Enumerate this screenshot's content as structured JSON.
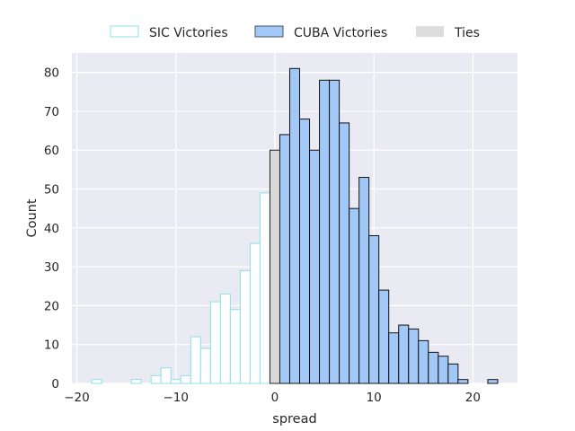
{
  "chart_data": {
    "type": "bar",
    "title": "",
    "xlabel": "spread",
    "ylabel": "Count",
    "xlim": [
      -20.5,
      24.5
    ],
    "ylim": [
      0,
      85
    ],
    "xticks": [
      -20,
      -10,
      0,
      10,
      20
    ],
    "yticks": [
      0,
      10,
      20,
      30,
      40,
      50,
      60,
      70,
      80
    ],
    "grid": true,
    "legend_position": "top-center",
    "bin_width": 1,
    "series": [
      {
        "name": "SIC Victories",
        "style": "outline",
        "edge_color": "#8fdfe8",
        "fill_color": "#ffffff",
        "bins": [
          {
            "x": -18,
            "count": 1
          },
          {
            "x": -14,
            "count": 1
          },
          {
            "x": -12,
            "count": 2
          },
          {
            "x": -11,
            "count": 4
          },
          {
            "x": -10,
            "count": 1
          },
          {
            "x": -9,
            "count": 2
          },
          {
            "x": -8,
            "count": 12
          },
          {
            "x": -7,
            "count": 9
          },
          {
            "x": -6,
            "count": 21
          },
          {
            "x": -5,
            "count": 23
          },
          {
            "x": -4,
            "count": 19
          },
          {
            "x": -3,
            "count": 29
          },
          {
            "x": -2,
            "count": 36
          },
          {
            "x": -1,
            "count": 49
          }
        ]
      },
      {
        "name": "CUBA Victories",
        "style": "filled",
        "edge_color": "#111111",
        "fill_color": "#a2c8f7",
        "bins": [
          {
            "x": 1,
            "count": 64
          },
          {
            "x": 2,
            "count": 81
          },
          {
            "x": 3,
            "count": 68
          },
          {
            "x": 4,
            "count": 60
          },
          {
            "x": 5,
            "count": 78
          },
          {
            "x": 6,
            "count": 78
          },
          {
            "x": 7,
            "count": 67
          },
          {
            "x": 8,
            "count": 45
          },
          {
            "x": 9,
            "count": 53
          },
          {
            "x": 10,
            "count": 38
          },
          {
            "x": 11,
            "count": 24
          },
          {
            "x": 12,
            "count": 13
          },
          {
            "x": 13,
            "count": 15
          },
          {
            "x": 14,
            "count": 14
          },
          {
            "x": 15,
            "count": 11
          },
          {
            "x": 16,
            "count": 8
          },
          {
            "x": 17,
            "count": 7
          },
          {
            "x": 18,
            "count": 5
          },
          {
            "x": 19,
            "count": 1
          },
          {
            "x": 22,
            "count": 1
          }
        ]
      },
      {
        "name": "Ties",
        "style": "filled",
        "edge_color": "#222222",
        "fill_color": "#d8d8d8",
        "legend_color": "#dddddd",
        "bins": [
          {
            "x": 0,
            "count": 60
          }
        ]
      }
    ]
  },
  "colors": {
    "plot_background": "#eaeaf2",
    "grid": "#ffffff",
    "text": "#262626"
  }
}
